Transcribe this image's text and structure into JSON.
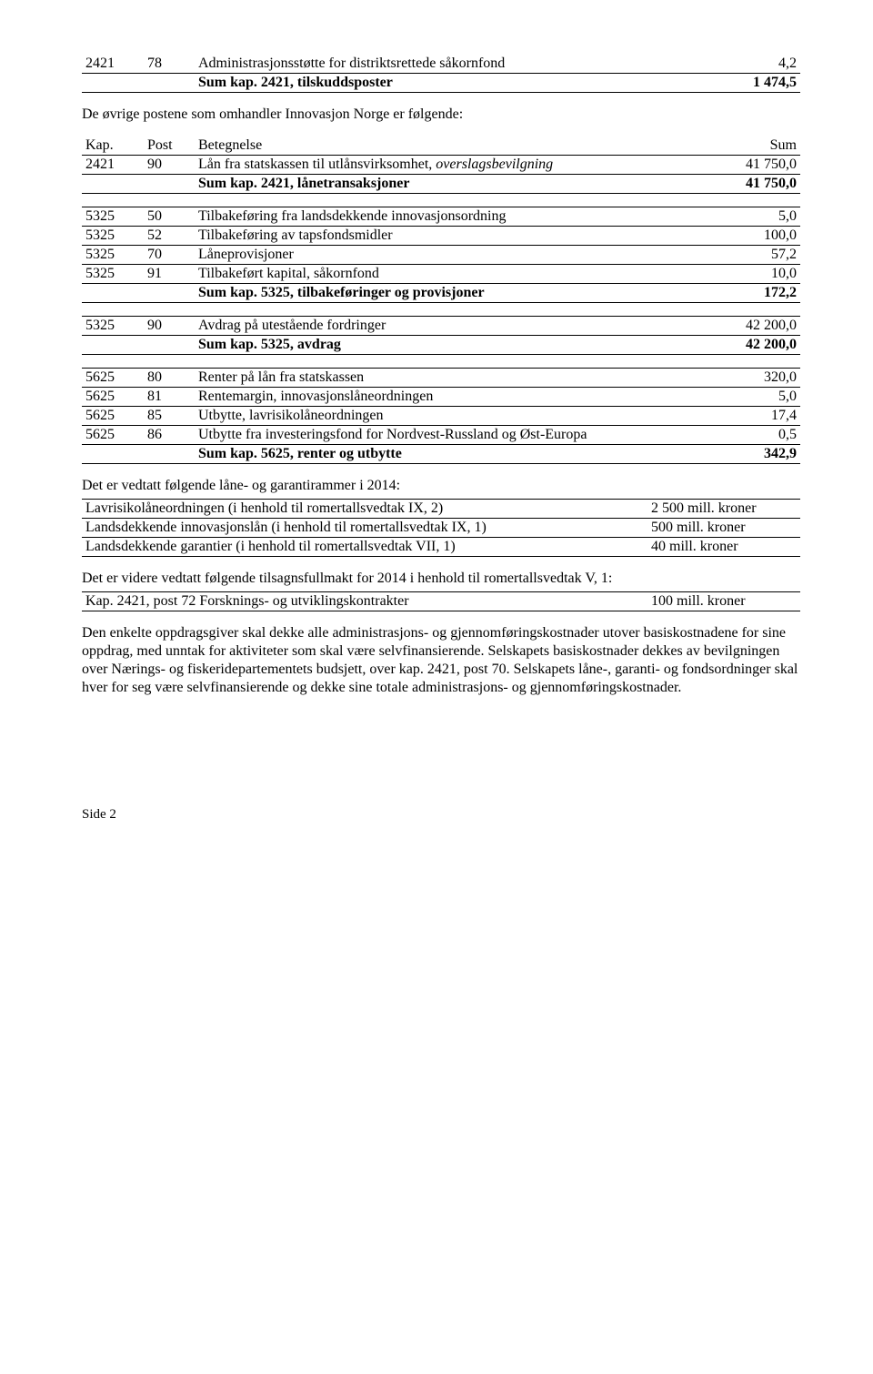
{
  "t1": {
    "r1": {
      "kap": "2421",
      "post": "78",
      "desc": "Administrasjonsstøtte for distriktsrettede såkornfond",
      "val": "4,2"
    },
    "sum": {
      "label": "Sum kap. 2421, tilskuddsposter",
      "val": "1 474,5"
    }
  },
  "p_intro": "De øvrige postene som omhandler Innovasjon Norge er følgende:",
  "t2": {
    "head": {
      "kap": "Kap.",
      "post": "Post",
      "desc": "Betegnelse",
      "val": "Sum"
    },
    "r1": {
      "kap": "2421",
      "post": "90",
      "desc_a": "Lån fra statskassen til utlånsvirksomhet, ",
      "desc_b": "overslagsbevilgning",
      "val": "41 750,0"
    },
    "sum": {
      "label": "Sum kap. 2421, lånetransaksjoner",
      "val": "41 750,0"
    }
  },
  "t3": {
    "r1": {
      "kap": "5325",
      "post": "50",
      "desc": "Tilbakeføring fra landsdekkende innovasjonsordning",
      "val": "5,0"
    },
    "r2": {
      "kap": "5325",
      "post": "52",
      "desc": "Tilbakeføring av tapsfondsmidler",
      "val": "100,0"
    },
    "r3": {
      "kap": "5325",
      "post": "70",
      "desc": "Låneprovisjoner",
      "val": "57,2"
    },
    "r4": {
      "kap": "5325",
      "post": "91",
      "desc": "Tilbakeført kapital, såkornfond",
      "val": "10,0"
    },
    "sum": {
      "label": "Sum kap. 5325, tilbakeføringer og provisjoner",
      "val": "172,2"
    }
  },
  "t4": {
    "r1": {
      "kap": "5325",
      "post": "90",
      "desc": "Avdrag på utestående fordringer",
      "val": "42 200,0"
    },
    "sum": {
      "label": "Sum kap. 5325, avdrag",
      "val": "42 200,0"
    }
  },
  "t5": {
    "r1": {
      "kap": "5625",
      "post": "80",
      "desc": "Renter på lån fra statskassen",
      "val": "320,0"
    },
    "r2": {
      "kap": "5625",
      "post": "81",
      "desc": "Rentemargin, innovasjonslåneordningen",
      "val": "5,0"
    },
    "r3": {
      "kap": "5625",
      "post": "85",
      "desc": "Utbytte, lavrisikolåneordningen",
      "val": "17,4"
    },
    "r4": {
      "kap": "5625",
      "post": "86",
      "desc": "Utbytte fra investeringsfond for Nordvest-Russland og Øst-Europa",
      "val": "0,5"
    },
    "sum": {
      "label": "Sum kap. 5625, renter og utbytte",
      "val": "342,9"
    }
  },
  "p_rammer_intro": "Det er vedtatt følgende låne- og garantirammer i 2014:",
  "rammer": {
    "r1": {
      "left": "Lavrisikolåneordningen (i henhold til romertallsvedtak IX, 2)",
      "right": "2 500 mill. kroner"
    },
    "r2": {
      "left": "Landsdekkende innovasjonslån (i henhold til romertallsvedtak IX, 1)",
      "right": "500 mill. kroner"
    },
    "r3": {
      "left": "Landsdekkende garantier (i henhold til romertallsvedtak VII, 1)",
      "right": "40 mill. kroner"
    }
  },
  "p_tilsagn_intro": "Det er videre vedtatt følgende tilsagnsfullmakt for 2014 i henhold til romertallsvedtak V, 1:",
  "tilsagn": {
    "r1": {
      "left": "Kap. 2421, post 72 Forsknings- og utviklingskontrakter",
      "right": "100 mill. kroner"
    }
  },
  "p_body": "Den enkelte oppdragsgiver skal dekke alle administrasjons- og gjennomføringskostnader utover basiskostnadene for sine oppdrag, med unntak for aktiviteter som skal være selvfinansierende. Selskapets basiskostnader dekkes av bevilgningen over Nærings- og fiskeridepartementets budsjett, over kap. 2421, post 70. Selskapets låne-, garanti- og fondsordninger skal hver for seg være selvfinansierende og dekke sine totale administrasjons- og gjennomføringskostnader.",
  "footer": "Side 2"
}
